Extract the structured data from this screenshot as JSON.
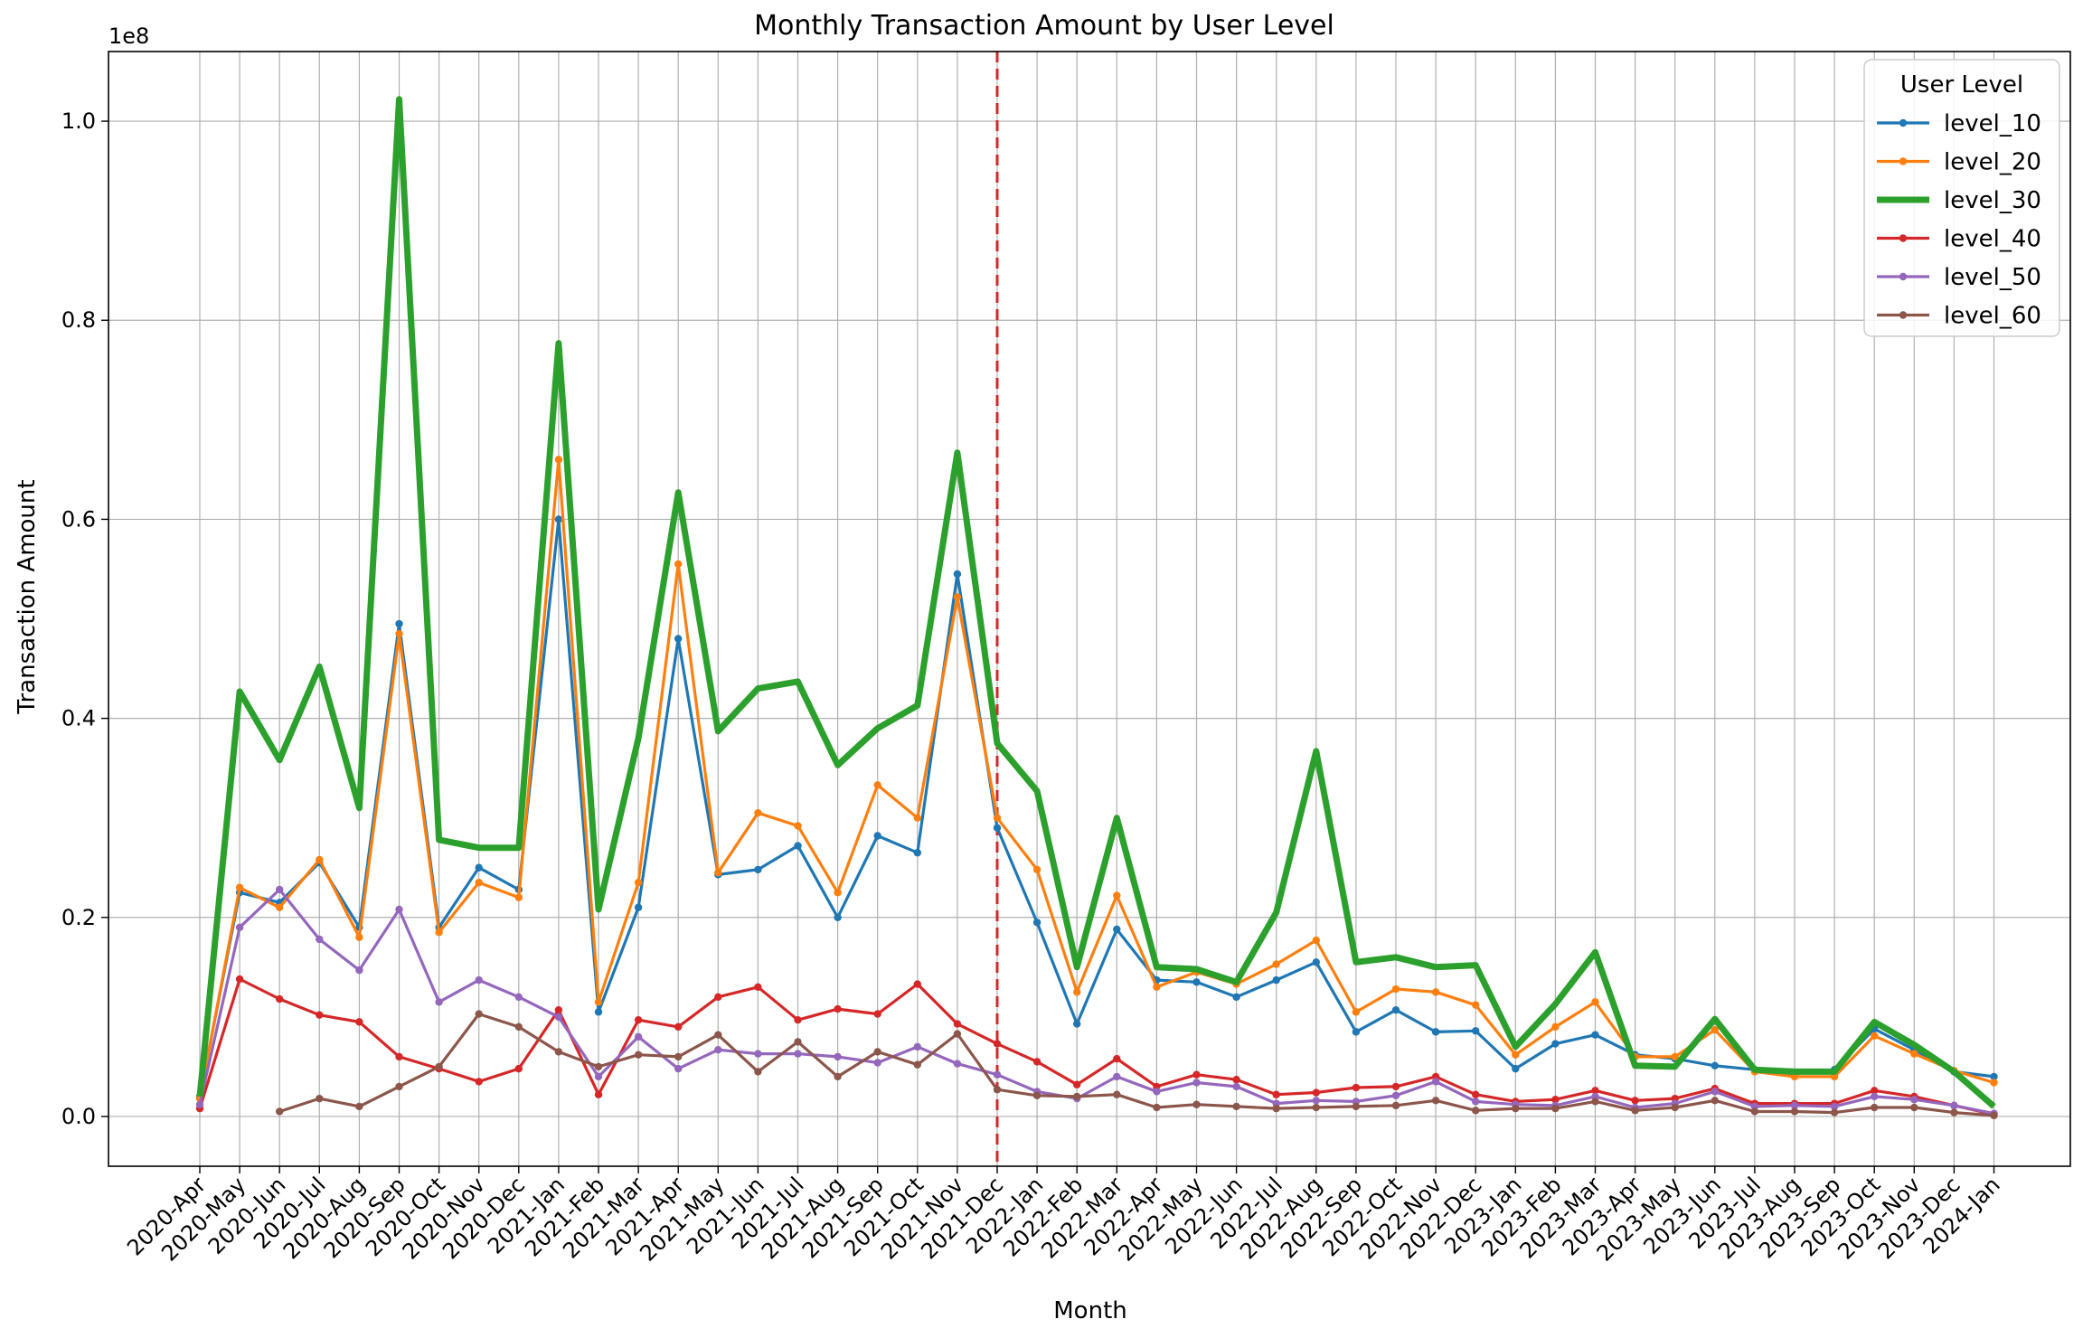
{
  "chart_data": {
    "type": "line",
    "title": "Monthly Transaction Amount by User Level",
    "xlabel": "Month",
    "ylabel": "Transaction Amount",
    "y_scale_label": "1e8",
    "y_unit_multiplier": 100000000,
    "ylim": [
      -0.05,
      1.07
    ],
    "yticks": [
      0.0,
      0.2,
      0.4,
      0.6,
      0.8,
      1.0
    ],
    "ytick_labels": [
      "0.0",
      "0.2",
      "0.4",
      "0.6",
      "0.8",
      "1.0"
    ],
    "grid": true,
    "legend_title": "User Level",
    "legend_position": "top-right",
    "vertical_marker": {
      "category": "2021-Dec",
      "color": "#d62728",
      "style": "dashed"
    },
    "categories": [
      "2020-Apr",
      "2020-May",
      "2020-Jun",
      "2020-Jul",
      "2020-Aug",
      "2020-Sep",
      "2020-Oct",
      "2020-Nov",
      "2020-Dec",
      "2021-Jan",
      "2021-Feb",
      "2021-Mar",
      "2021-Apr",
      "2021-May",
      "2021-Jun",
      "2021-Jul",
      "2021-Aug",
      "2021-Sep",
      "2021-Oct",
      "2021-Nov",
      "2021-Dec",
      "2022-Jan",
      "2022-Feb",
      "2022-Mar",
      "2022-Apr",
      "2022-May",
      "2022-Jun",
      "2022-Jul",
      "2022-Aug",
      "2022-Sep",
      "2022-Oct",
      "2022-Nov",
      "2022-Dec",
      "2023-Jan",
      "2023-Feb",
      "2023-Mar",
      "2023-Apr",
      "2023-May",
      "2023-Jun",
      "2023-Jul",
      "2023-Aug",
      "2023-Sep",
      "2023-Oct",
      "2023-Nov",
      "2023-Dec",
      "2024-Jan"
    ],
    "series": [
      {
        "name": "level_10",
        "color": "#1f77b4",
        "bold": false,
        "values": [
          0.02,
          0.225,
          0.215,
          0.255,
          0.19,
          0.495,
          0.19,
          0.25,
          0.228,
          0.6,
          0.105,
          0.21,
          0.48,
          0.243,
          0.248,
          0.272,
          0.2,
          0.282,
          0.265,
          0.545,
          0.29,
          0.195,
          0.093,
          0.188,
          0.137,
          0.135,
          0.12,
          0.137,
          0.155,
          0.085,
          0.107,
          0.085,
          0.086,
          0.048,
          0.073,
          0.082,
          0.062,
          0.058,
          0.051,
          0.047,
          0.043,
          0.047,
          0.088,
          0.067,
          0.045,
          0.04
        ]
      },
      {
        "name": "level_20",
        "color": "#ff7f0e",
        "bold": false,
        "values": [
          0.018,
          0.23,
          0.21,
          0.258,
          0.18,
          0.485,
          0.185,
          0.235,
          0.22,
          0.66,
          0.115,
          0.235,
          0.555,
          0.245,
          0.305,
          0.292,
          0.225,
          0.333,
          0.3,
          0.522,
          0.3,
          0.248,
          0.125,
          0.222,
          0.13,
          0.145,
          0.133,
          0.153,
          0.177,
          0.105,
          0.128,
          0.125,
          0.112,
          0.062,
          0.09,
          0.115,
          0.06,
          0.06,
          0.087,
          0.045,
          0.04,
          0.04,
          0.081,
          0.063,
          0.046,
          0.034
        ]
      },
      {
        "name": "level_30",
        "color": "#2ca02c",
        "bold": true,
        "values": [
          0.02,
          0.427,
          0.358,
          0.452,
          0.31,
          1.022,
          0.278,
          0.27,
          0.27,
          0.777,
          0.208,
          0.38,
          0.627,
          0.387,
          0.43,
          0.437,
          0.353,
          0.39,
          0.413,
          0.667,
          0.375,
          0.327,
          0.15,
          0.3,
          0.15,
          0.148,
          0.135,
          0.205,
          0.367,
          0.155,
          0.16,
          0.15,
          0.152,
          0.07,
          0.113,
          0.165,
          0.051,
          0.05,
          0.098,
          0.047,
          0.045,
          0.045,
          0.095,
          0.072,
          0.045,
          0.01
        ]
      },
      {
        "name": "level_40",
        "color": "#d62728",
        "bold": false,
        "values": [
          0.008,
          0.138,
          0.118,
          0.102,
          0.095,
          0.06,
          0.048,
          0.035,
          0.048,
          0.107,
          0.022,
          0.097,
          0.09,
          0.12,
          0.13,
          0.097,
          0.108,
          0.103,
          0.133,
          0.093,
          0.073,
          0.055,
          0.032,
          0.058,
          0.03,
          0.042,
          0.037,
          0.022,
          0.024,
          0.029,
          0.03,
          0.04,
          0.022,
          0.015,
          0.017,
          0.026,
          0.016,
          0.018,
          0.028,
          0.013,
          0.013,
          0.013,
          0.026,
          0.02,
          0.011,
          0.002
        ]
      },
      {
        "name": "level_50",
        "color": "#9467bd",
        "bold": false,
        "values": [
          0.012,
          0.19,
          0.228,
          0.178,
          0.147,
          0.208,
          0.115,
          0.137,
          0.12,
          0.1,
          0.04,
          0.08,
          0.048,
          0.067,
          0.063,
          0.063,
          0.06,
          0.054,
          0.07,
          0.053,
          0.042,
          0.025,
          0.018,
          0.04,
          0.025,
          0.034,
          0.03,
          0.013,
          0.016,
          0.015,
          0.021,
          0.035,
          0.015,
          0.012,
          0.011,
          0.02,
          0.009,
          0.013,
          0.025,
          0.01,
          0.011,
          0.01,
          0.02,
          0.017,
          0.011,
          0.003
        ]
      },
      {
        "name": "level_60",
        "color": "#8c564b",
        "bold": false,
        "values": [
          null,
          null,
          0.005,
          0.018,
          0.01,
          0.03,
          0.05,
          0.103,
          0.09,
          0.065,
          0.05,
          0.062,
          0.06,
          0.082,
          0.045,
          0.075,
          0.04,
          0.065,
          0.052,
          0.083,
          0.027,
          0.021,
          0.02,
          0.022,
          0.009,
          0.012,
          0.01,
          0.008,
          0.009,
          0.01,
          0.011,
          0.016,
          0.006,
          0.008,
          0.008,
          0.015,
          0.006,
          0.009,
          0.016,
          0.005,
          0.005,
          0.004,
          0.009,
          0.009,
          0.004,
          0.001
        ]
      }
    ]
  }
}
